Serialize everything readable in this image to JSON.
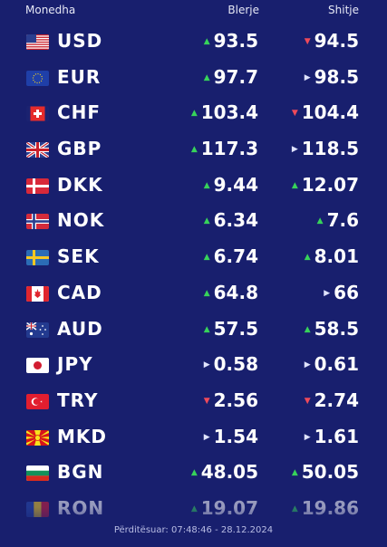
{
  "header": {
    "currency": "Monedha",
    "buy": "Blerje",
    "sell": "Shitje"
  },
  "rows": [
    {
      "code": "USD",
      "flag": "us-flag-icon",
      "buy": "93.5",
      "buy_trend": "up",
      "sell": "94.5",
      "sell_trend": "down"
    },
    {
      "code": "EUR",
      "flag": "eu-flag-icon",
      "buy": "97.7",
      "buy_trend": "up",
      "sell": "98.5",
      "sell_trend": "flat"
    },
    {
      "code": "CHF",
      "flag": "ch-flag-icon",
      "buy": "103.4",
      "buy_trend": "up",
      "sell": "104.4",
      "sell_trend": "down"
    },
    {
      "code": "GBP",
      "flag": "gb-flag-icon",
      "buy": "117.3",
      "buy_trend": "up",
      "sell": "118.5",
      "sell_trend": "flat"
    },
    {
      "code": "DKK",
      "flag": "dk-flag-icon",
      "buy": "9.44",
      "buy_trend": "up",
      "sell": "12.07",
      "sell_trend": "up"
    },
    {
      "code": "NOK",
      "flag": "no-flag-icon",
      "buy": "6.34",
      "buy_trend": "up",
      "sell": "7.6",
      "sell_trend": "up"
    },
    {
      "code": "SEK",
      "flag": "se-flag-icon",
      "buy": "6.74",
      "buy_trend": "up",
      "sell": "8.01",
      "sell_trend": "up"
    },
    {
      "code": "CAD",
      "flag": "ca-flag-icon",
      "buy": "64.8",
      "buy_trend": "up",
      "sell": "66",
      "sell_trend": "flat"
    },
    {
      "code": "AUD",
      "flag": "au-flag-icon",
      "buy": "57.5",
      "buy_trend": "up",
      "sell": "58.5",
      "sell_trend": "up"
    },
    {
      "code": "JPY",
      "flag": "jp-flag-icon",
      "buy": "0.58",
      "buy_trend": "flat",
      "sell": "0.61",
      "sell_trend": "flat"
    },
    {
      "code": "TRY",
      "flag": "tr-flag-icon",
      "buy": "2.56",
      "buy_trend": "down",
      "sell": "2.74",
      "sell_trend": "down"
    },
    {
      "code": "MKD",
      "flag": "mk-flag-icon",
      "buy": "1.54",
      "buy_trend": "flat",
      "sell": "1.61",
      "sell_trend": "flat"
    },
    {
      "code": "BGN",
      "flag": "bg-flag-icon",
      "buy": "48.05",
      "buy_trend": "up",
      "sell": "50.05",
      "sell_trend": "up"
    },
    {
      "code": "RON",
      "flag": "ro-flag-icon",
      "buy": "19.07",
      "buy_trend": "up",
      "sell": "19.86",
      "sell_trend": "up"
    }
  ],
  "footer": {
    "updated": "Përditësuar: 07:48:46 - 28.12.2024"
  },
  "colors": {
    "background": "#181f6e",
    "up": "#37d35a",
    "down": "#ef4a5a",
    "flat": "#dfe3ff"
  }
}
